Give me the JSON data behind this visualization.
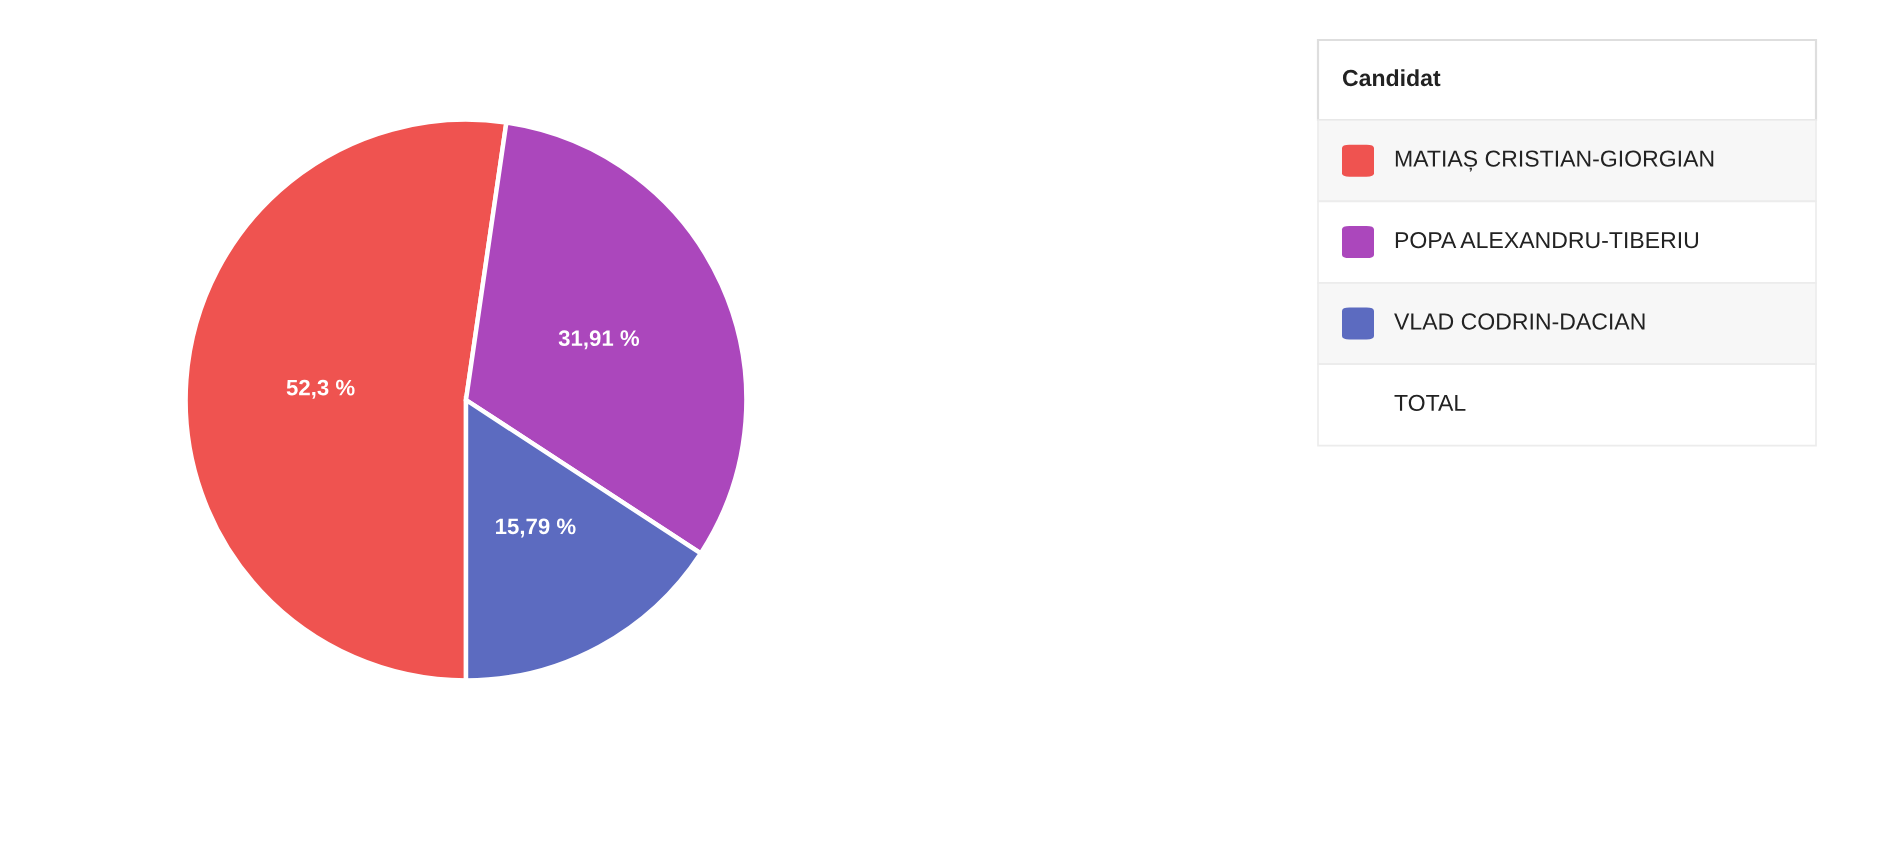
{
  "chart_data": {
    "type": "pie",
    "categories": [
      "MATIAȘ CRISTIAN-GIORGIAN",
      "POPA ALEXANDRU-TIBERIU",
      "VLAD CODRIN-DACIAN"
    ],
    "values": [
      52.3,
      31.91,
      15.79
    ],
    "colors": [
      "#ef5350",
      "#ab47bc",
      "#5c6bc0"
    ],
    "value_labels": [
      "52,3 %",
      "31,91 %",
      "15,79 %"
    ],
    "legend_title": "Candidat",
    "legend": "top right",
    "annotations": [
      "TOTAL"
    ]
  }
}
